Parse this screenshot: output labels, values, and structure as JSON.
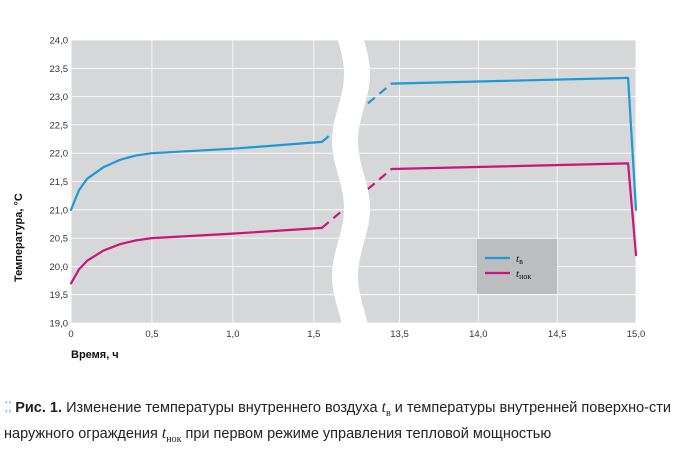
{
  "chart_data": {
    "type": "line",
    "xlabel": "Время, ч",
    "ylabel": "Температура, °С",
    "ylim": [
      19.0,
      24.0
    ],
    "yticks": [
      "19,0",
      "19,5",
      "20,0",
      "20,5",
      "21,0",
      "21,5",
      "22,0",
      "22,5",
      "23,0",
      "23,5",
      "24,0"
    ],
    "x_segments": [
      {
        "range": [
          0,
          1.6
        ],
        "ticks": [
          "0",
          "0,5",
          "1,0",
          "1,5"
        ]
      },
      {
        "range": [
          13.3,
          15.0
        ],
        "ticks": [
          "13,5",
          "14,0",
          "14,5",
          "15,0"
        ]
      }
    ],
    "axis_break": "wavy",
    "grid": true,
    "legend_position": "inside-right",
    "series": [
      {
        "name": "tв",
        "name_main": "t",
        "name_sub": "в",
        "color": "#1b9ad6",
        "segment1": [
          [
            0,
            21.0
          ],
          [
            0.05,
            21.35
          ],
          [
            0.1,
            21.55
          ],
          [
            0.2,
            21.75
          ],
          [
            0.3,
            21.88
          ],
          [
            0.4,
            21.96
          ],
          [
            0.5,
            22.0
          ],
          [
            1.0,
            22.08
          ],
          [
            1.55,
            22.2
          ]
        ],
        "bridge": [
          [
            1.55,
            22.2
          ],
          [
            13.45,
            23.23
          ]
        ],
        "segment2": [
          [
            13.45,
            23.23
          ],
          [
            14.95,
            23.33
          ],
          [
            15.0,
            21.0
          ]
        ]
      },
      {
        "name": "tнок",
        "name_main": "t",
        "name_sub": "нок",
        "color": "#c8167a",
        "segment1": [
          [
            0,
            19.7
          ],
          [
            0.05,
            19.95
          ],
          [
            0.1,
            20.1
          ],
          [
            0.2,
            20.28
          ],
          [
            0.3,
            20.39
          ],
          [
            0.4,
            20.46
          ],
          [
            0.5,
            20.5
          ],
          [
            1.0,
            20.58
          ],
          [
            1.55,
            20.68
          ]
        ],
        "bridge": [
          [
            1.55,
            20.68
          ],
          [
            13.45,
            21.72
          ]
        ],
        "segment2": [
          [
            13.45,
            21.72
          ],
          [
            14.95,
            21.82
          ],
          [
            15.0,
            20.2
          ]
        ]
      }
    ]
  },
  "caption": {
    "figure_label": "Рис. 1.",
    "text_part1": "Изменение температуры внутреннего воздуха",
    "var1_main": "t",
    "var1_sub": "в",
    "text_part2": "и температуры внутренней поверхно-сти наружного ограждения",
    "var2_main": "t",
    "var2_sub": "нок",
    "text_part3": "при первом режиме управления тепловой мощностью"
  },
  "colors": {
    "plot_background": "#d6d7d8",
    "legend_background": "#bcbdbf",
    "grid": "#ffffff"
  }
}
